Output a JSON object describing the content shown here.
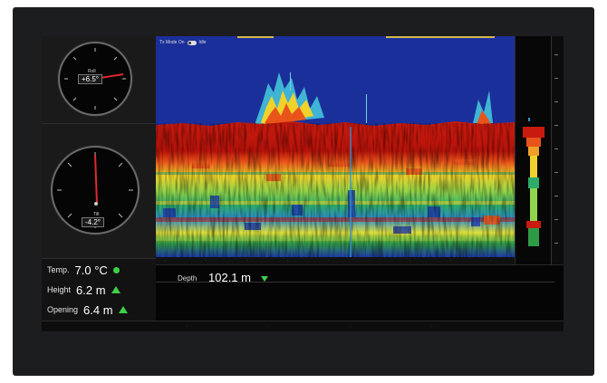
{
  "gauges": {
    "roll": {
      "label": "Roll",
      "value": "+6.5°"
    },
    "pitch": {
      "label": "Tilt",
      "value": "-4.2°"
    }
  },
  "sensors": [
    {
      "label": "Temp.",
      "value": "7.0 °C",
      "indicator": "circle"
    },
    {
      "label": "Height",
      "value": "6.2 m",
      "indicator": "up"
    },
    {
      "label": "Opening",
      "value": "6.4 m",
      "indicator": "up"
    }
  ],
  "depth": {
    "label": "Depth",
    "value": "102.1 m"
  },
  "echogram": {
    "header": "Tx Mode On",
    "status": "Idle"
  },
  "colors": {
    "accent": "#3fd04a",
    "water": "#1b2f9a",
    "bottom": "#c01e10"
  }
}
